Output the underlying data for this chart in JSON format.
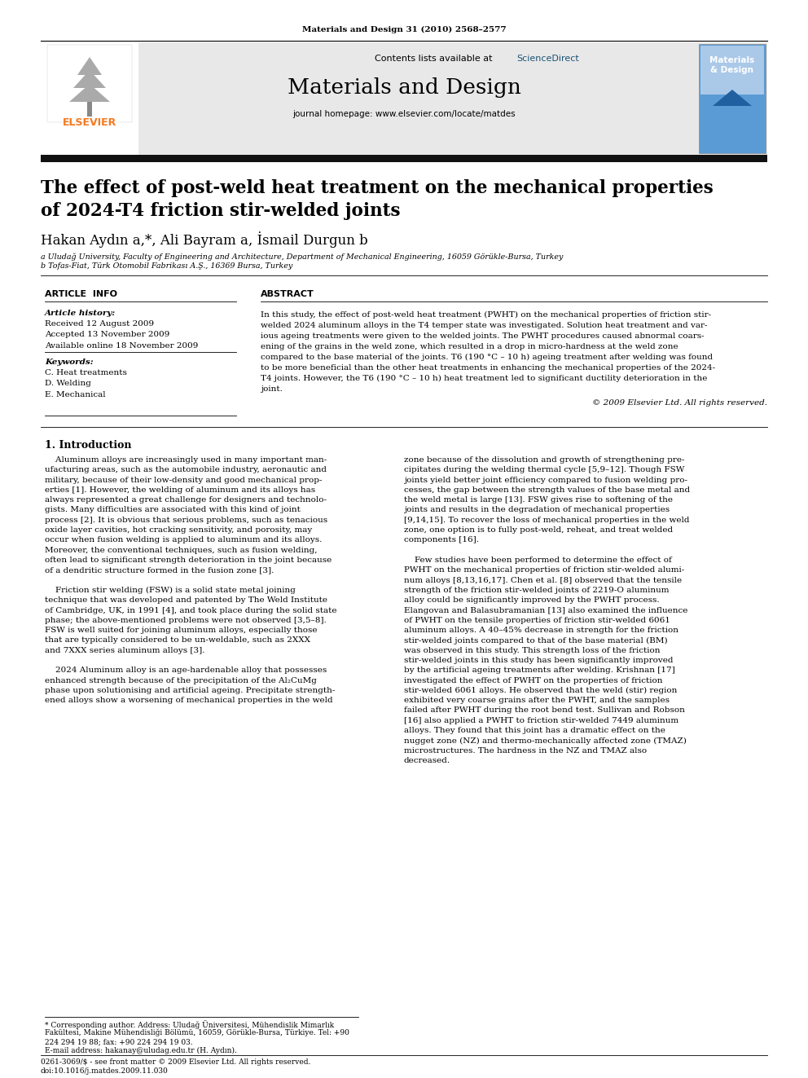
{
  "journal_ref": "Materials and Design 31 (2010) 2568–2577",
  "contents_line": "Contents lists available at ",
  "sciencedirect": "ScienceDirect",
  "journal_name": "Materials and Design",
  "journal_homepage": "journal homepage: www.elsevier.com/locate/matdes",
  "paper_title_line1": "The effect of post-weld heat treatment on the mechanical properties",
  "paper_title_line2": "of 2024-T4 friction stir-welded joints",
  "authors": "Hakan Aydın a,*, Ali Bayram a, İsmail Durgun b",
  "affil1": "a Uludağ University, Faculty of Engineering and Architecture, Department of Mechanical Engineering, 16059 Görükle-Bursa, Turkey",
  "affil2": "b Tofas-Fiat, Türk Otomobil Fabrikası A.Ş., 16369 Bursa, Turkey",
  "article_info_title": "ARTICLE  INFO",
  "abstract_title": "ABSTRACT",
  "article_history_label": "Article history:",
  "received": "Received 12 August 2009",
  "accepted": "Accepted 13 November 2009",
  "available": "Available online 18 November 2009",
  "keywords_label": "Keywords:",
  "keyword1": "C. Heat treatments",
  "keyword2": "D. Welding",
  "keyword3": "E. Mechanical",
  "abstract_lines": [
    "In this study, the effect of post-weld heat treatment (PWHT) on the mechanical properties of friction stir-",
    "welded 2024 aluminum alloys in the T4 temper state was investigated. Solution heat treatment and var-",
    "ious ageing treatments were given to the welded joints. The PWHT procedures caused abnormal coars-",
    "ening of the grains in the weld zone, which resulted in a drop in micro-hardness at the weld zone",
    "compared to the base material of the joints. T6 (190 °C – 10 h) ageing treatment after welding was found",
    "to be more beneficial than the other heat treatments in enhancing the mechanical properties of the 2024-",
    "T4 joints. However, the T6 (190 °C – 10 h) heat treatment led to significant ductility deterioration in the",
    "joint."
  ],
  "copyright": "© 2009 Elsevier Ltd. All rights reserved.",
  "intro_title": "1. Introduction",
  "intro_col1_lines": [
    "    Aluminum alloys are increasingly used in many important man-",
    "ufacturing areas, such as the automobile industry, aeronautic and",
    "military, because of their low-density and good mechanical prop-",
    "erties [1]. However, the welding of aluminum and its alloys has",
    "always represented a great challenge for designers and technolo-",
    "gists. Many difficulties are associated with this kind of joint",
    "process [2]. It is obvious that serious problems, such as tenacious",
    "oxide layer cavities, hot cracking sensitivity, and porosity, may",
    "occur when fusion welding is applied to aluminum and its alloys.",
    "Moreover, the conventional techniques, such as fusion welding,",
    "often lead to significant strength deterioration in the joint because",
    "of a dendritic structure formed in the fusion zone [3].",
    "",
    "    Friction stir welding (FSW) is a solid state metal joining",
    "technique that was developed and patented by The Weld Institute",
    "of Cambridge, UK, in 1991 [4], and took place during the solid state",
    "phase; the above-mentioned problems were not observed [3,5–8].",
    "FSW is well suited for joining aluminum alloys, especially those",
    "that are typically considered to be un-weldable, such as 2XXX",
    "and 7XXX series aluminum alloys [3].",
    "",
    "    2024 Aluminum alloy is an age-hardenable alloy that possesses",
    "enhanced strength because of the precipitation of the Al₂CuMg",
    "phase upon solutionising and artificial ageing. Precipitate strength-",
    "ened alloys show a worsening of mechanical properties in the weld"
  ],
  "intro_col2_lines": [
    "zone because of the dissolution and growth of strengthening pre-",
    "cipitates during the welding thermal cycle [5,9–12]. Though FSW",
    "joints yield better joint efficiency compared to fusion welding pro-",
    "cesses, the gap between the strength values of the base metal and",
    "the weld metal is large [13]. FSW gives rise to softening of the",
    "joints and results in the degradation of mechanical properties",
    "[9,14,15]. To recover the loss of mechanical properties in the weld",
    "zone, one option is to fully post-weld, reheat, and treat welded",
    "components [16].",
    "",
    "    Few studies have been performed to determine the effect of",
    "PWHT on the mechanical properties of friction stir-welded alumi-",
    "num alloys [8,13,16,17]. Chen et al. [8] observed that the tensile",
    "strength of the friction stir-welded joints of 2219-O aluminum",
    "alloy could be significantly improved by the PWHT process.",
    "Elangovan and Balasubramanian [13] also examined the influence",
    "of PWHT on the tensile properties of friction stir-welded 6061",
    "aluminum alloys. A 40–45% decrease in strength for the friction",
    "stir-welded joints compared to that of the base material (BM)",
    "was observed in this study. This strength loss of the friction",
    "stir-welded joints in this study has been significantly improved",
    "by the artificial ageing treatments after welding. Krishnan [17]",
    "investigated the effect of PWHT on the properties of friction",
    "stir-welded 6061 alloys. He observed that the weld (stir) region",
    "exhibited very coarse grains after the PWHT, and the samples",
    "failed after PWHT during the root bend test. Sullivan and Robson",
    "[16] also applied a PWHT to friction stir-welded 7449 aluminum",
    "alloys. They found that this joint has a dramatic effect on the",
    "nugget zone (NZ) and thermo-mechanically affected zone (TMAZ)",
    "microstructures. The hardness in the NZ and TMAZ also",
    "decreased."
  ],
  "footnote1": "* Corresponding author. Address: Uludağ Üniversitesi, Mühendislik Mimarlık",
  "footnote1b": "Fakültesi, Makine Mühendisliği Bölümü, 16059, Görükle-Bursa, Türkiye. Tel: +90",
  "footnote1c": "224 294 19 88; fax: +90 224 294 19 03.",
  "footnote2": "E-mail address: hakanay@uludag.edu.tr (H. Aydın).",
  "footer1": "0261-3069/$ - see front matter © 2009 Elsevier Ltd. All rights reserved.",
  "footer2": "doi:10.1016/j.matdes.2009.11.030",
  "bg_header": "#e8e8e8",
  "color_sciencedirect": "#1a5276",
  "color_elsevier_orange": "#f47920",
  "color_black": "#000000",
  "color_dark_bar": "#111111",
  "color_link": "#1a5276"
}
